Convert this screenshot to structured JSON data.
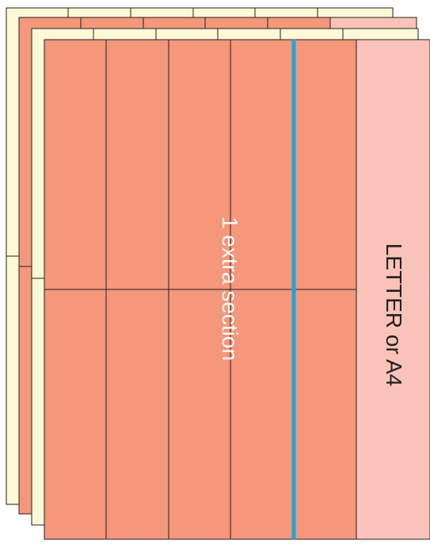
{
  "labels": {
    "extra_section": "1 extra section",
    "paper_size": "LETTER or A4"
  },
  "layout": {
    "sheet_count": 4,
    "columns_main": 5,
    "rows": 2,
    "extra_columns": 1
  },
  "colors": {
    "back_sheet_fill": "#fdf9d6",
    "panel_fill": "#f4977b",
    "paper_margin_fill": "#f9c3b9",
    "divider_line": "#1ea5dd",
    "grid_line": "#231f20",
    "extra_text": "#ffffff",
    "paper_text": "#231f20"
  }
}
